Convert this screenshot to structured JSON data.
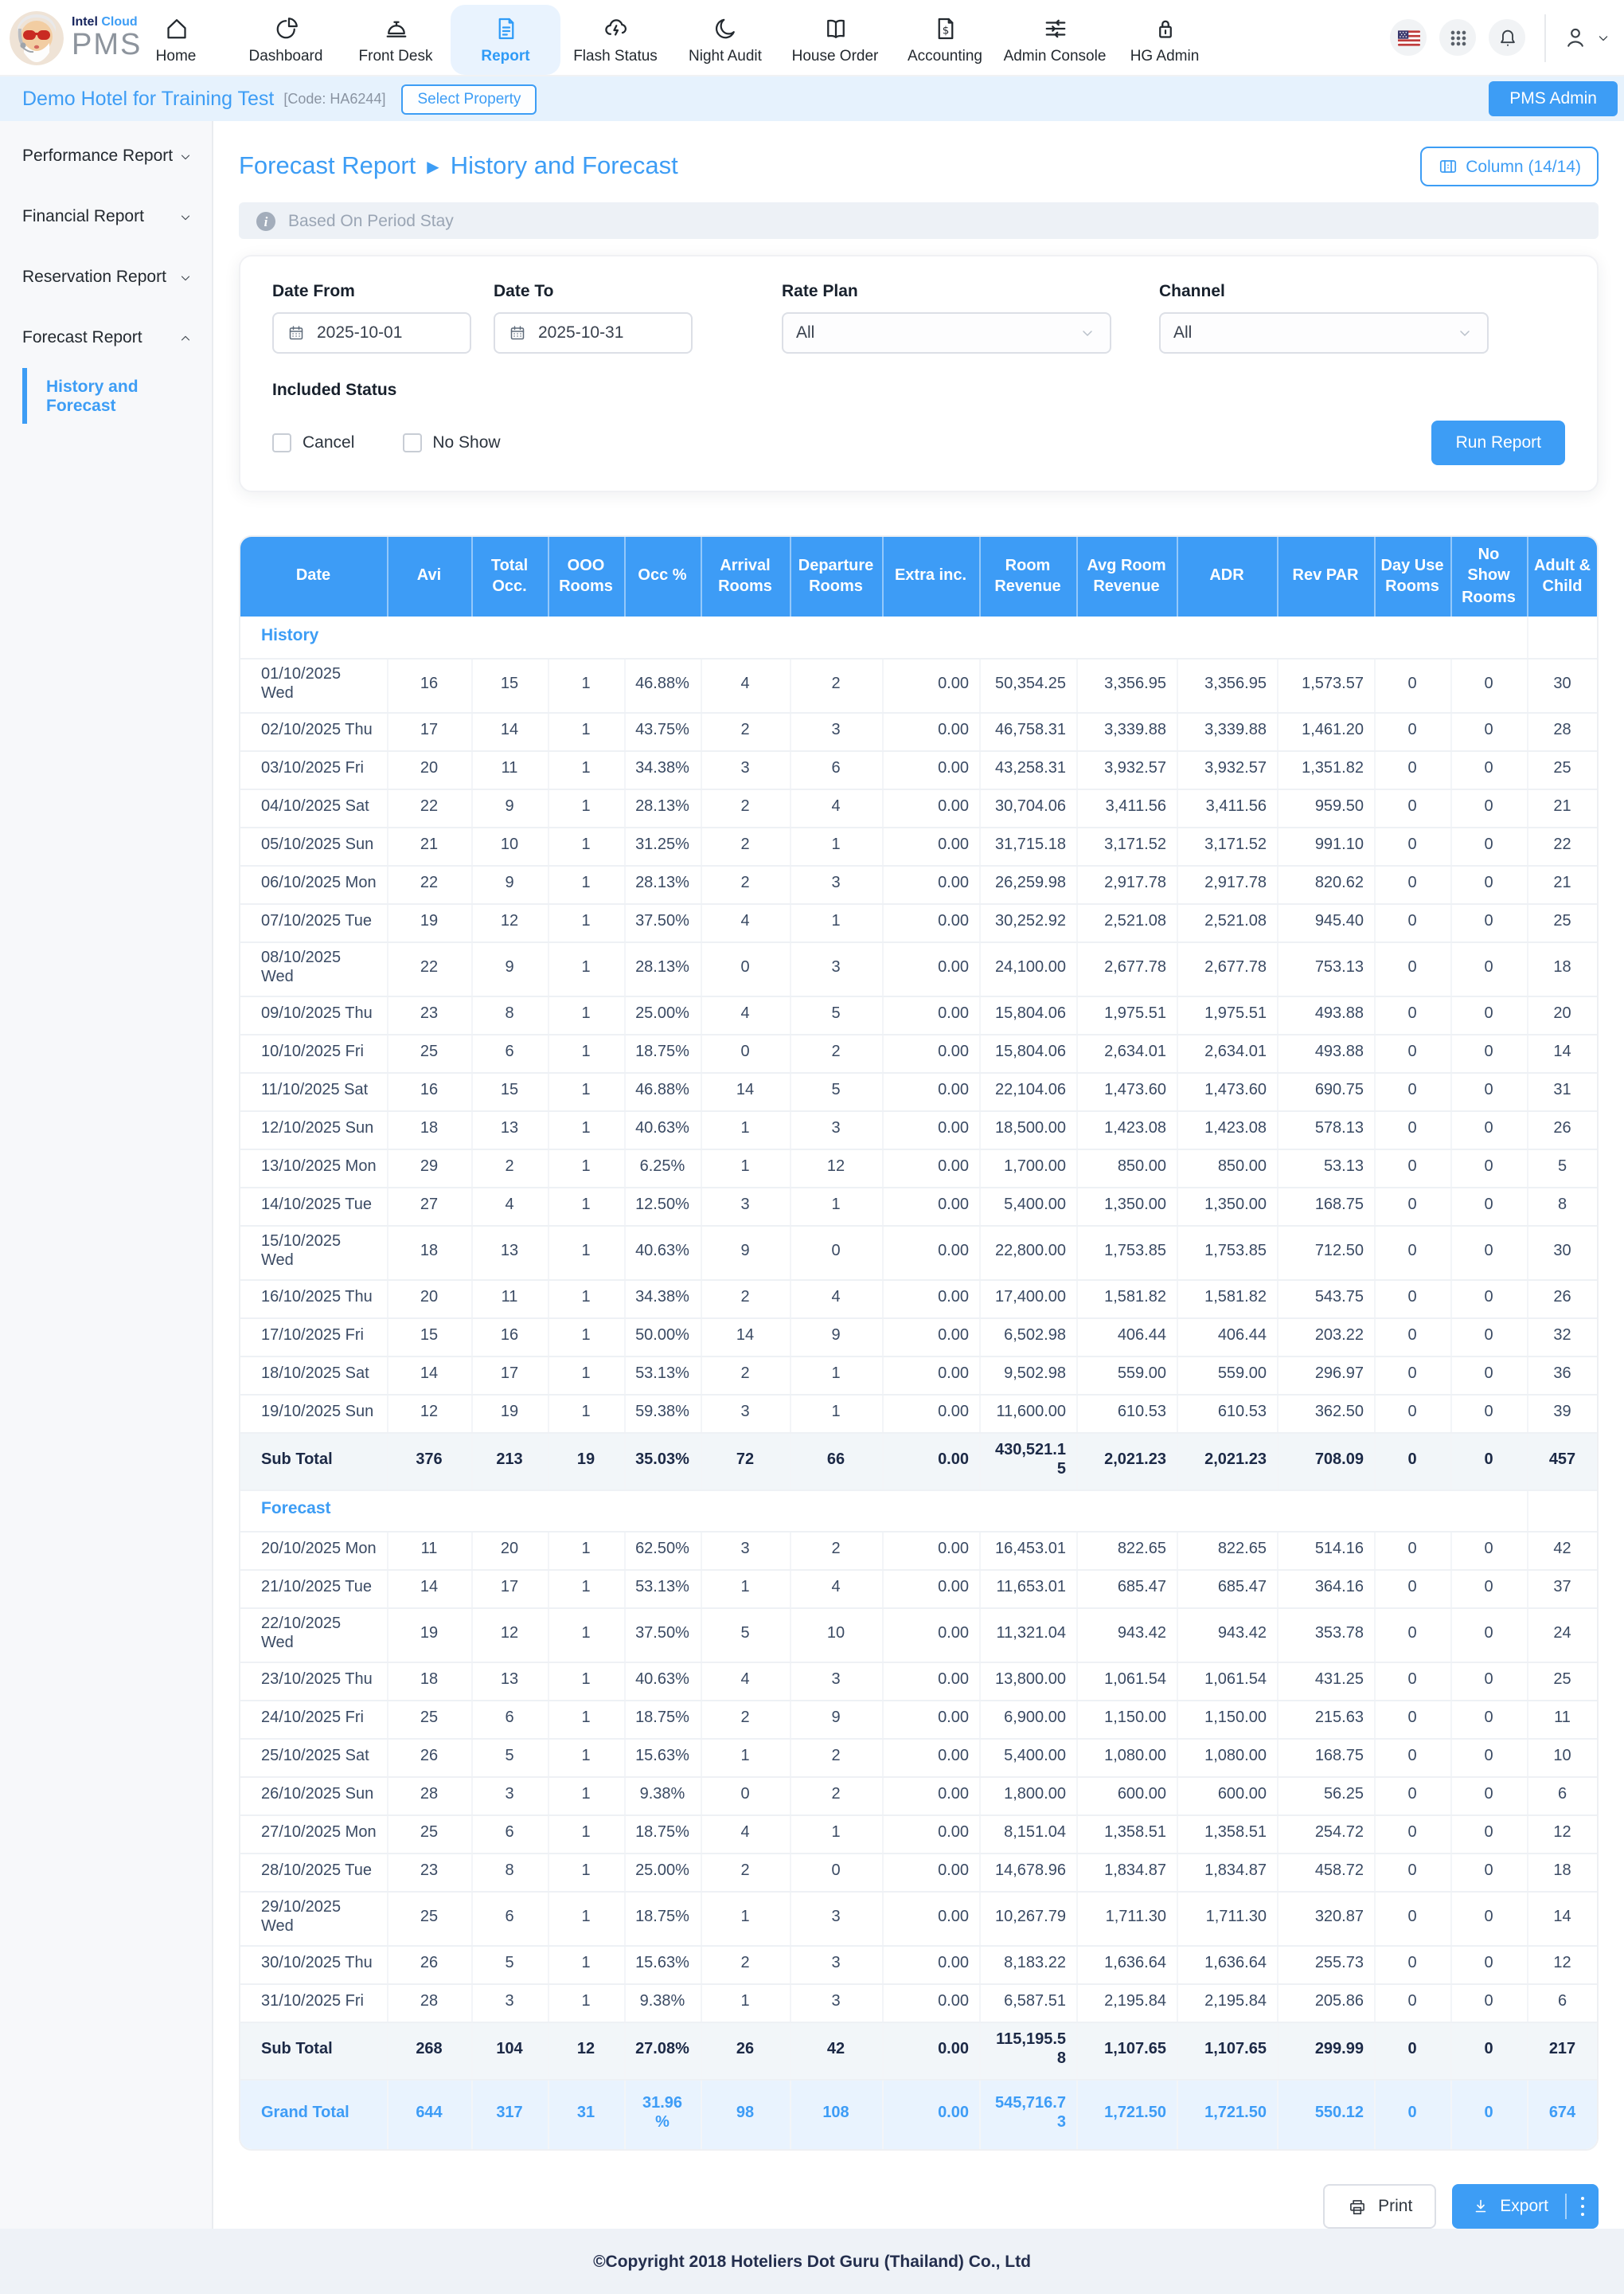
{
  "topnav": {
    "brand": {
      "name_part1": "Intel",
      "name_part2": "Cloud",
      "product": "PMS",
      "avatar_icon": "santa-avatar-icon"
    },
    "items": [
      {
        "label": "Home",
        "icon": "home-icon",
        "active": false
      },
      {
        "label": "Dashboard",
        "icon": "dashboard-icon",
        "active": false
      },
      {
        "label": "Front Desk",
        "icon": "front-desk-icon",
        "active": false
      },
      {
        "label": "Report",
        "icon": "report-icon",
        "active": true
      },
      {
        "label": "Flash Status",
        "icon": "flash-status-icon",
        "active": false
      },
      {
        "label": "Night Audit",
        "icon": "night-audit-icon",
        "active": false
      },
      {
        "label": "House Order",
        "icon": "house-order-icon",
        "active": false
      },
      {
        "label": "Accounting",
        "icon": "accounting-icon",
        "active": false
      },
      {
        "label": "Admin Console",
        "icon": "admin-console-icon",
        "active": false
      },
      {
        "label": "HG Admin",
        "icon": "hg-admin-icon",
        "active": false
      }
    ],
    "right_icons": [
      "us-flag-icon",
      "apps-grid-icon",
      "notification-bell-icon",
      "user-icon",
      "chevron-down-icon"
    ]
  },
  "property_bar": {
    "hotel_name": "Demo Hotel for Training Test",
    "hotel_code": "[Code: HA6244]",
    "select_property_label": "Select Property",
    "pms_admin_label": "PMS Admin"
  },
  "sidebar": {
    "items": [
      {
        "label": "Performance Report",
        "expanded": false
      },
      {
        "label": "Financial Report",
        "expanded": false
      },
      {
        "label": "Reservation Report",
        "expanded": false
      },
      {
        "label": "Forecast Report",
        "expanded": true
      }
    ],
    "sub_item": {
      "label": "History and Forecast",
      "active": true
    }
  },
  "page_header": {
    "breadcrumb_parent": "Forecast Report",
    "breadcrumb_separator": "▶",
    "breadcrumb_current": "History and Forecast",
    "column_button_label": "Column (14/14)",
    "info_text": "Based On Period Stay"
  },
  "filters": {
    "date_from": {
      "label": "Date From",
      "value": "2025-10-01"
    },
    "date_to": {
      "label": "Date To",
      "value": "2025-10-31"
    },
    "rate_plan": {
      "label": "Rate Plan",
      "value": "All"
    },
    "channel": {
      "label": "Channel",
      "value": "All"
    },
    "included_status_label": "Included Status",
    "cancel_label": "Cancel",
    "no_show_label": "No Show",
    "cancel_checked": false,
    "no_show_checked": false,
    "run_report_label": "Run Report"
  },
  "report_table": {
    "headers": [
      "Date",
      "Avi",
      "Total Occ.",
      "OOO Rooms",
      "Occ %",
      "Arrival Rooms",
      "Departure Rooms",
      "Extra inc.",
      "Room Revenue",
      "Avg Room Revenue",
      "ADR",
      "Rev PAR",
      "Day Use Rooms",
      "No Show Rooms",
      "Adult & Child"
    ],
    "sections": [
      {
        "title": "History",
        "rows": [
          [
            "01/10/2025 Wed",
            "16",
            "15",
            "1",
            "46.88%",
            "4",
            "2",
            "0.00",
            "50,354.25",
            "3,356.95",
            "3,356.95",
            "1,573.57",
            "0",
            "0",
            "30"
          ],
          [
            "02/10/2025 Thu",
            "17",
            "14",
            "1",
            "43.75%",
            "2",
            "3",
            "0.00",
            "46,758.31",
            "3,339.88",
            "3,339.88",
            "1,461.20",
            "0",
            "0",
            "28"
          ],
          [
            "03/10/2025 Fri",
            "20",
            "11",
            "1",
            "34.38%",
            "3",
            "6",
            "0.00",
            "43,258.31",
            "3,932.57",
            "3,932.57",
            "1,351.82",
            "0",
            "0",
            "25"
          ],
          [
            "04/10/2025 Sat",
            "22",
            "9",
            "1",
            "28.13%",
            "2",
            "4",
            "0.00",
            "30,704.06",
            "3,411.56",
            "3,411.56",
            "959.50",
            "0",
            "0",
            "21"
          ],
          [
            "05/10/2025 Sun",
            "21",
            "10",
            "1",
            "31.25%",
            "2",
            "1",
            "0.00",
            "31,715.18",
            "3,171.52",
            "3,171.52",
            "991.10",
            "0",
            "0",
            "22"
          ],
          [
            "06/10/2025 Mon",
            "22",
            "9",
            "1",
            "28.13%",
            "2",
            "3",
            "0.00",
            "26,259.98",
            "2,917.78",
            "2,917.78",
            "820.62",
            "0",
            "0",
            "21"
          ],
          [
            "07/10/2025 Tue",
            "19",
            "12",
            "1",
            "37.50%",
            "4",
            "1",
            "0.00",
            "30,252.92",
            "2,521.08",
            "2,521.08",
            "945.40",
            "0",
            "0",
            "25"
          ],
          [
            "08/10/2025 Wed",
            "22",
            "9",
            "1",
            "28.13%",
            "0",
            "3",
            "0.00",
            "24,100.00",
            "2,677.78",
            "2,677.78",
            "753.13",
            "0",
            "0",
            "18"
          ],
          [
            "09/10/2025 Thu",
            "23",
            "8",
            "1",
            "25.00%",
            "4",
            "5",
            "0.00",
            "15,804.06",
            "1,975.51",
            "1,975.51",
            "493.88",
            "0",
            "0",
            "20"
          ],
          [
            "10/10/2025 Fri",
            "25",
            "6",
            "1",
            "18.75%",
            "0",
            "2",
            "0.00",
            "15,804.06",
            "2,634.01",
            "2,634.01",
            "493.88",
            "0",
            "0",
            "14"
          ],
          [
            "11/10/2025 Sat",
            "16",
            "15",
            "1",
            "46.88%",
            "14",
            "5",
            "0.00",
            "22,104.06",
            "1,473.60",
            "1,473.60",
            "690.75",
            "0",
            "0",
            "31"
          ],
          [
            "12/10/2025 Sun",
            "18",
            "13",
            "1",
            "40.63%",
            "1",
            "3",
            "0.00",
            "18,500.00",
            "1,423.08",
            "1,423.08",
            "578.13",
            "0",
            "0",
            "26"
          ],
          [
            "13/10/2025 Mon",
            "29",
            "2",
            "1",
            "6.25%",
            "1",
            "12",
            "0.00",
            "1,700.00",
            "850.00",
            "850.00",
            "53.13",
            "0",
            "0",
            "5"
          ],
          [
            "14/10/2025 Tue",
            "27",
            "4",
            "1",
            "12.50%",
            "3",
            "1",
            "0.00",
            "5,400.00",
            "1,350.00",
            "1,350.00",
            "168.75",
            "0",
            "0",
            "8"
          ],
          [
            "15/10/2025 Wed",
            "18",
            "13",
            "1",
            "40.63%",
            "9",
            "0",
            "0.00",
            "22,800.00",
            "1,753.85",
            "1,753.85",
            "712.50",
            "0",
            "0",
            "30"
          ],
          [
            "16/10/2025 Thu",
            "20",
            "11",
            "1",
            "34.38%",
            "2",
            "4",
            "0.00",
            "17,400.00",
            "1,581.82",
            "1,581.82",
            "543.75",
            "0",
            "0",
            "26"
          ],
          [
            "17/10/2025 Fri",
            "15",
            "16",
            "1",
            "50.00%",
            "14",
            "9",
            "0.00",
            "6,502.98",
            "406.44",
            "406.44",
            "203.22",
            "0",
            "0",
            "32"
          ],
          [
            "18/10/2025 Sat",
            "14",
            "17",
            "1",
            "53.13%",
            "2",
            "1",
            "0.00",
            "9,502.98",
            "559.00",
            "559.00",
            "296.97",
            "0",
            "0",
            "36"
          ],
          [
            "19/10/2025 Sun",
            "12",
            "19",
            "1",
            "59.38%",
            "3",
            "1",
            "0.00",
            "11,600.00",
            "610.53",
            "610.53",
            "362.50",
            "0",
            "0",
            "39"
          ]
        ],
        "subtotal": {
          "label": "Sub Total",
          "values": [
            "376",
            "213",
            "19",
            "35.03%",
            "72",
            "66",
            "0.00",
            "430,521.15",
            "2,021.23",
            "2,021.23",
            "708.09",
            "0",
            "0",
            "457"
          ]
        }
      },
      {
        "title": "Forecast",
        "rows": [
          [
            "20/10/2025 Mon",
            "11",
            "20",
            "1",
            "62.50%",
            "3",
            "2",
            "0.00",
            "16,453.01",
            "822.65",
            "822.65",
            "514.16",
            "0",
            "0",
            "42"
          ],
          [
            "21/10/2025 Tue",
            "14",
            "17",
            "1",
            "53.13%",
            "1",
            "4",
            "0.00",
            "11,653.01",
            "685.47",
            "685.47",
            "364.16",
            "0",
            "0",
            "37"
          ],
          [
            "22/10/2025 Wed",
            "19",
            "12",
            "1",
            "37.50%",
            "5",
            "10",
            "0.00",
            "11,321.04",
            "943.42",
            "943.42",
            "353.78",
            "0",
            "0",
            "24"
          ],
          [
            "23/10/2025 Thu",
            "18",
            "13",
            "1",
            "40.63%",
            "4",
            "3",
            "0.00",
            "13,800.00",
            "1,061.54",
            "1,061.54",
            "431.25",
            "0",
            "0",
            "25"
          ],
          [
            "24/10/2025 Fri",
            "25",
            "6",
            "1",
            "18.75%",
            "2",
            "9",
            "0.00",
            "6,900.00",
            "1,150.00",
            "1,150.00",
            "215.63",
            "0",
            "0",
            "11"
          ],
          [
            "25/10/2025 Sat",
            "26",
            "5",
            "1",
            "15.63%",
            "1",
            "2",
            "0.00",
            "5,400.00",
            "1,080.00",
            "1,080.00",
            "168.75",
            "0",
            "0",
            "10"
          ],
          [
            "26/10/2025 Sun",
            "28",
            "3",
            "1",
            "9.38%",
            "0",
            "2",
            "0.00",
            "1,800.00",
            "600.00",
            "600.00",
            "56.25",
            "0",
            "0",
            "6"
          ],
          [
            "27/10/2025 Mon",
            "25",
            "6",
            "1",
            "18.75%",
            "4",
            "1",
            "0.00",
            "8,151.04",
            "1,358.51",
            "1,358.51",
            "254.72",
            "0",
            "0",
            "12"
          ],
          [
            "28/10/2025 Tue",
            "23",
            "8",
            "1",
            "25.00%",
            "2",
            "0",
            "0.00",
            "14,678.96",
            "1,834.87",
            "1,834.87",
            "458.72",
            "0",
            "0",
            "18"
          ],
          [
            "29/10/2025 Wed",
            "25",
            "6",
            "1",
            "18.75%",
            "1",
            "3",
            "0.00",
            "10,267.79",
            "1,711.30",
            "1,711.30",
            "320.87",
            "0",
            "0",
            "14"
          ],
          [
            "30/10/2025 Thu",
            "26",
            "5",
            "1",
            "15.63%",
            "2",
            "3",
            "0.00",
            "8,183.22",
            "1,636.64",
            "1,636.64",
            "255.73",
            "0",
            "0",
            "12"
          ],
          [
            "31/10/2025 Fri",
            "28",
            "3",
            "1",
            "9.38%",
            "1",
            "3",
            "0.00",
            "6,587.51",
            "2,195.84",
            "2,195.84",
            "205.86",
            "0",
            "0",
            "6"
          ]
        ],
        "subtotal": {
          "label": "Sub Total",
          "values": [
            "268",
            "104",
            "12",
            "27.08%",
            "26",
            "42",
            "0.00",
            "115,195.58",
            "1,107.65",
            "1,107.65",
            "299.99",
            "0",
            "0",
            "217"
          ]
        }
      }
    ],
    "grand_total": {
      "label": "Grand Total",
      "values": [
        "644",
        "317",
        "31",
        "31.96 %",
        "98",
        "108",
        "0.00",
        "545,716.73",
        "1,721.50",
        "1,721.50",
        "550.12",
        "0",
        "0",
        "674"
      ]
    }
  },
  "actions": {
    "print_label": "Print",
    "export_label": "Export"
  },
  "footer": {
    "copyright": "©Copyright 2018 Hoteliers Dot Guru (Thailand) Co., Ltd"
  },
  "colors": {
    "primary": "#3d9df5",
    "table_header_bg": "#3d9cf6",
    "active_nav_bg": "#e9f3fe",
    "property_bar_bg": "#e6f2fd",
    "subtotal_bg": "#f2f6f9",
    "grand_total_bg": "#e9f3fe",
    "footer_bg": "#eef2f7"
  }
}
